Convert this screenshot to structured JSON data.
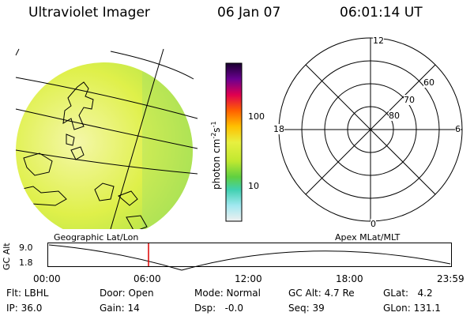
{
  "header": {
    "title": "Ultraviolet Imager",
    "date": "06 Jan 07",
    "time": "06:01:14 UT"
  },
  "colorbar": {
    "label_main": "photon cm",
    "label_sup1": "-2",
    "label_mid": "s",
    "label_sup2": "-1",
    "ticks": [
      "100",
      "10"
    ]
  },
  "polar_plot": {
    "top_label": "12",
    "bottom_label": "0",
    "left_label": "18",
    "right_label": "6",
    "lat_labels": [
      "60",
      "70",
      "80"
    ]
  },
  "timeline": {
    "left_title": "Geographic Lat/Lon",
    "right_title": "Apex MLat/MLT",
    "y_label": "GC Alt",
    "y_ticks": [
      "9.0",
      "1.8"
    ],
    "x_ticks": [
      "00:00",
      "06:00",
      "12:00",
      "18:00",
      "23:59"
    ],
    "marker_time": "06:01:14"
  },
  "status": {
    "filter": "Flt: LBHL",
    "ip": "IP: 36.0",
    "door": "Door: Open",
    "gain": "Gain: 14",
    "mode": "Mode: Normal",
    "dsp": "Dsp:   -0.0",
    "gc_alt": "GC Alt: 4.7 Re",
    "seq": "Seq: 39",
    "glat": "GLat:   4.2",
    "glon": "GLon: 131.1"
  },
  "colors": {
    "image_fill": "#d8ec3a",
    "marker": "#dd0000",
    "lines": "#000000"
  }
}
